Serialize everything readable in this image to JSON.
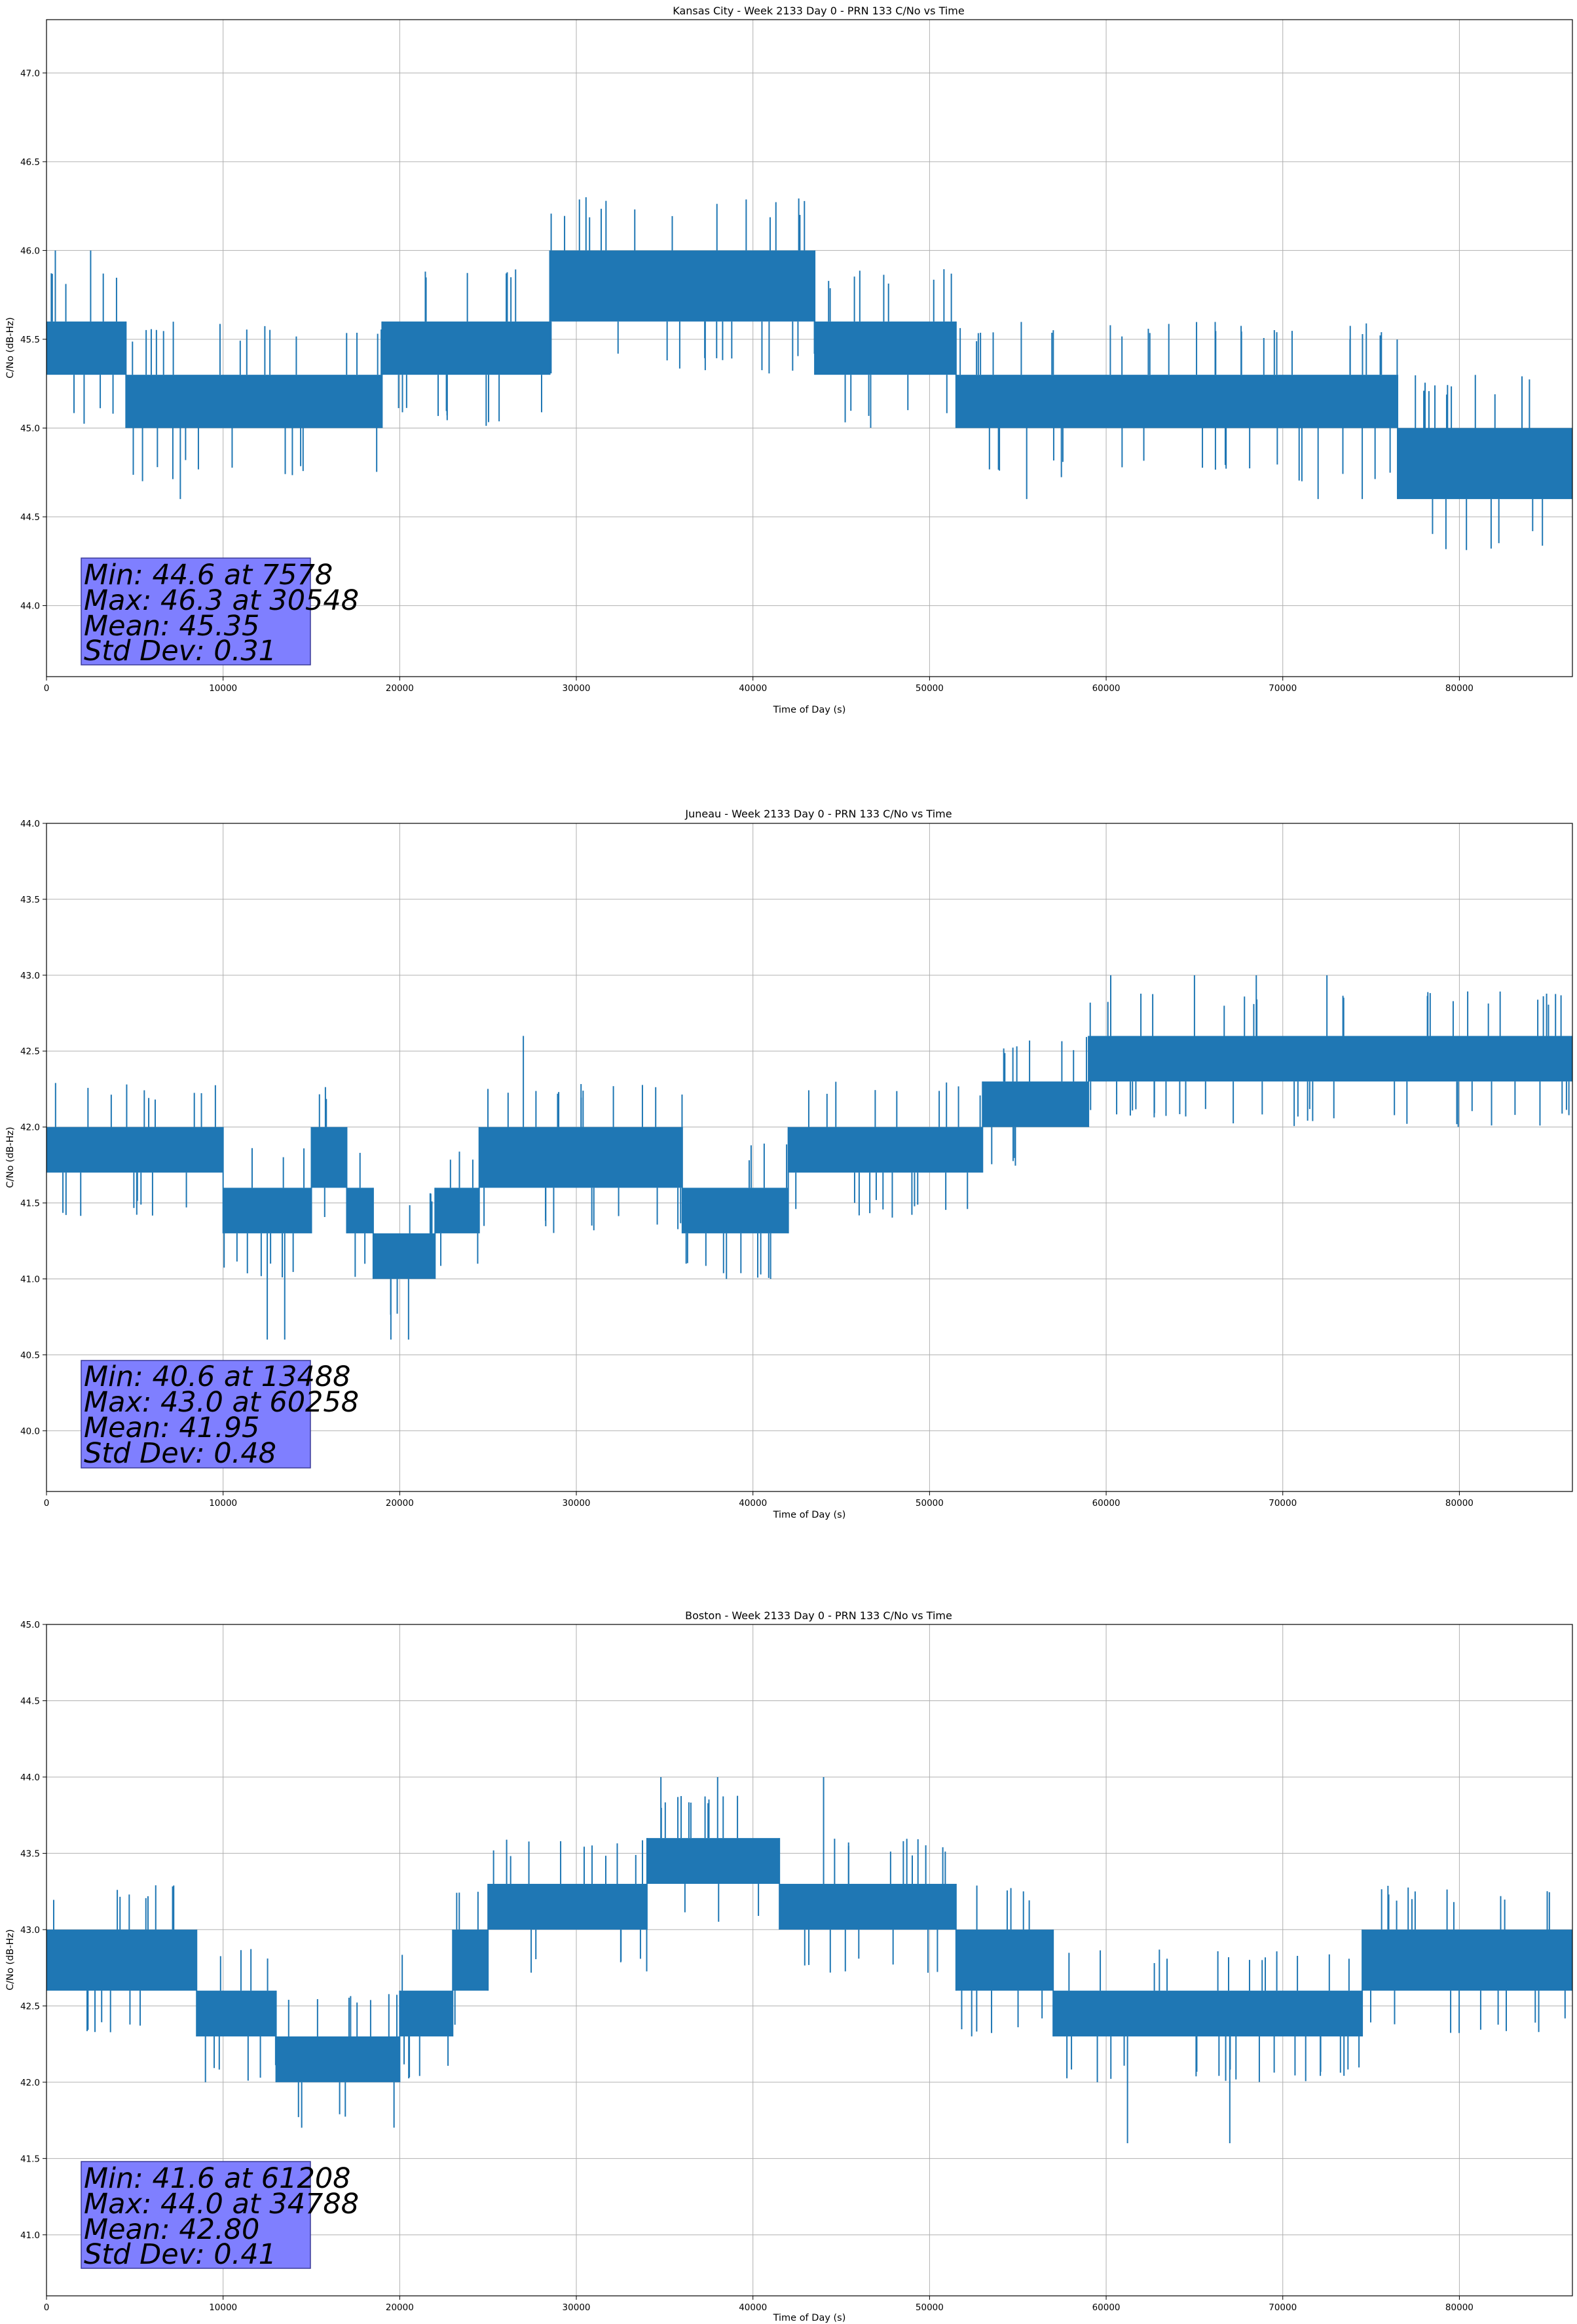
{
  "chart_data": [
    {
      "type": "line",
      "title": "Kansas City - Week 2133 Day 0 - PRN 133 C/No vs Time",
      "xlabel": "Time of Day (s)",
      "ylabel": "C/No (dB-Hz)",
      "xlim": [
        0,
        86400
      ],
      "ylim": [
        43.6,
        47.3
      ],
      "xticks": [
        0,
        10000,
        20000,
        30000,
        40000,
        50000,
        60000,
        70000,
        80000
      ],
      "yticks": [
        44.0,
        44.5,
        45.0,
        45.5,
        46.0,
        46.5,
        47.0
      ],
      "grid": true,
      "line_color": "#1f77b4",
      "series": [
        {
          "segments": [
            {
              "x0": 0,
              "x1": 4500,
              "low": 45.3,
              "high": 45.6
            },
            {
              "x0": 4500,
              "x1": 19000,
              "low": 45.0,
              "high": 45.3
            },
            {
              "x0": 19000,
              "x1": 28500,
              "low": 45.3,
              "high": 45.6
            },
            {
              "x0": 28500,
              "x1": 43500,
              "low": 45.6,
              "high": 46.0
            },
            {
              "x0": 43500,
              "x1": 51500,
              "low": 45.3,
              "high": 45.6
            },
            {
              "x0": 51500,
              "x1": 76500,
              "low": 45.0,
              "high": 45.3
            },
            {
              "x0": 76500,
              "x1": 86400,
              "low": 44.6,
              "high": 45.0
            }
          ],
          "spikes": [
            {
              "x": 7578,
              "y": 44.6
            },
            {
              "x": 30548,
              "y": 46.3
            },
            {
              "x": 500,
              "y": 46.0
            },
            {
              "x": 2500,
              "y": 46.0
            },
            {
              "x": 55500,
              "y": 44.6
            },
            {
              "x": 72000,
              "y": 44.6
            },
            {
              "x": 74500,
              "y": 44.6
            }
          ]
        }
      ],
      "stats": {
        "min": "Min: 44.6 at 7578",
        "max": "Max: 46.3 at 30548",
        "mean": "Mean: 45.35",
        "std": "Std Dev: 0.31"
      }
    },
    {
      "type": "line",
      "title": "Juneau - Week 2133 Day 0 - PRN 133 C/No vs Time",
      "xlabel": "Time of Day (s)",
      "ylabel": "C/No (dB-Hz)",
      "xlim": [
        0,
        86400
      ],
      "ylim": [
        39.6,
        44.0
      ],
      "xticks": [
        0,
        10000,
        20000,
        30000,
        40000,
        50000,
        60000,
        70000,
        80000
      ],
      "yticks": [
        40.0,
        40.5,
        41.0,
        41.5,
        42.0,
        42.5,
        43.0,
        43.5,
        44.0
      ],
      "grid": true,
      "line_color": "#1f77b4",
      "series": [
        {
          "segments": [
            {
              "x0": 0,
              "x1": 10000,
              "low": 41.7,
              "high": 42.0
            },
            {
              "x0": 10000,
              "x1": 15000,
              "low": 41.3,
              "high": 41.6
            },
            {
              "x0": 15000,
              "x1": 17000,
              "low": 41.6,
              "high": 42.0
            },
            {
              "x0": 17000,
              "x1": 18500,
              "low": 41.3,
              "high": 41.6
            },
            {
              "x0": 18500,
              "x1": 22000,
              "low": 41.0,
              "high": 41.3
            },
            {
              "x0": 22000,
              "x1": 24500,
              "low": 41.3,
              "high": 41.6
            },
            {
              "x0": 24500,
              "x1": 36000,
              "low": 41.6,
              "high": 42.0
            },
            {
              "x0": 36000,
              "x1": 42000,
              "low": 41.3,
              "high": 41.6
            },
            {
              "x0": 42000,
              "x1": 53000,
              "low": 41.7,
              "high": 42.0
            },
            {
              "x0": 53000,
              "x1": 59000,
              "low": 42.0,
              "high": 42.3
            },
            {
              "x0": 59000,
              "x1": 86400,
              "low": 42.3,
              "high": 42.6
            }
          ],
          "spikes": [
            {
              "x": 13488,
              "y": 40.6
            },
            {
              "x": 60258,
              "y": 43.0
            },
            {
              "x": 27000,
              "y": 42.6
            },
            {
              "x": 12500,
              "y": 40.6
            },
            {
              "x": 19500,
              "y": 40.6
            },
            {
              "x": 20500,
              "y": 40.6
            },
            {
              "x": 38500,
              "y": 41.0
            },
            {
              "x": 41000,
              "y": 41.0
            },
            {
              "x": 65000,
              "y": 43.0
            },
            {
              "x": 68500,
              "y": 43.0
            },
            {
              "x": 72500,
              "y": 43.0
            }
          ]
        }
      ],
      "stats": {
        "min": "Min: 40.6 at 13488",
        "max": "Max: 43.0 at 60258",
        "mean": "Mean: 41.95",
        "std": "Std Dev: 0.48"
      }
    },
    {
      "type": "line",
      "title": "Boston - Week 2133 Day 0 - PRN 133 C/No vs Time",
      "xlabel": "Time of Day (s)",
      "ylabel": "C/No (dB-Hz)",
      "xlim": [
        0,
        86400
      ],
      "ylim": [
        40.6,
        45.0
      ],
      "xticks": [
        0,
        10000,
        20000,
        30000,
        40000,
        50000,
        60000,
        70000,
        80000
      ],
      "yticks": [
        41.0,
        41.5,
        42.0,
        42.5,
        43.0,
        43.5,
        44.0,
        44.5,
        45.0
      ],
      "grid": true,
      "line_color": "#1f77b4",
      "series": [
        {
          "segments": [
            {
              "x0": 0,
              "x1": 8500,
              "low": 42.6,
              "high": 43.0
            },
            {
              "x0": 8500,
              "x1": 13000,
              "low": 42.3,
              "high": 42.6
            },
            {
              "x0": 13000,
              "x1": 20000,
              "low": 42.0,
              "high": 42.3
            },
            {
              "x0": 20000,
              "x1": 23000,
              "low": 42.3,
              "high": 42.6
            },
            {
              "x0": 23000,
              "x1": 25000,
              "low": 42.6,
              "high": 43.0
            },
            {
              "x0": 25000,
              "x1": 34000,
              "low": 43.0,
              "high": 43.3
            },
            {
              "x0": 34000,
              "x1": 41500,
              "low": 43.3,
              "high": 43.6
            },
            {
              "x0": 41500,
              "x1": 51500,
              "low": 43.0,
              "high": 43.3
            },
            {
              "x0": 51500,
              "x1": 57000,
              "low": 42.6,
              "high": 43.0
            },
            {
              "x0": 57000,
              "x1": 74500,
              "low": 42.3,
              "high": 42.6
            },
            {
              "x0": 74500,
              "x1": 86400,
              "low": 42.6,
              "high": 43.0
            }
          ],
          "spikes": [
            {
              "x": 61208,
              "y": 41.6
            },
            {
              "x": 34788,
              "y": 44.0
            },
            {
              "x": 44000,
              "y": 44.0
            },
            {
              "x": 38000,
              "y": 44.0
            },
            {
              "x": 67000,
              "y": 41.6
            },
            {
              "x": 9000,
              "y": 42.0
            },
            {
              "x": 15000,
              "y": 42.0
            },
            {
              "x": 59500,
              "y": 42.0
            }
          ]
        }
      ],
      "stats": {
        "min": "Min: 41.6 at 61208",
        "max": "Max: 44.0 at 34788",
        "mean": "Mean: 42.80",
        "std": "Std Dev: 0.41"
      }
    }
  ]
}
